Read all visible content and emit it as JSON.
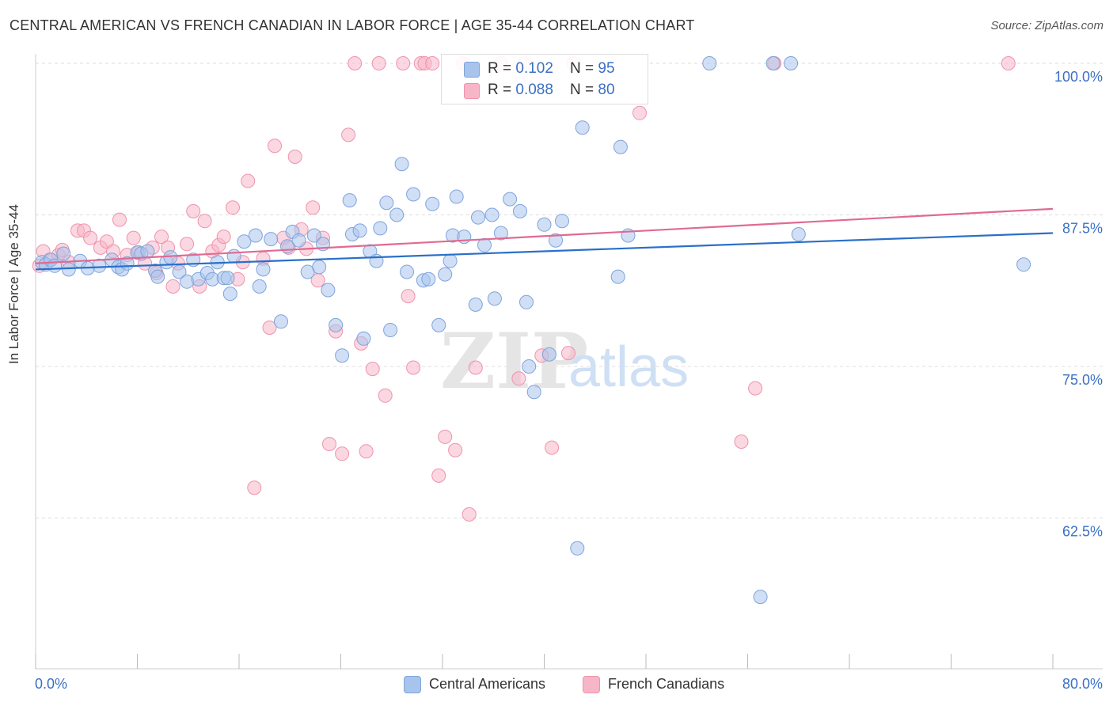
{
  "title": "CENTRAL AMERICAN VS FRENCH CANADIAN IN LABOR FORCE | AGE 35-44 CORRELATION CHART",
  "source": "Source: ZipAtlas.com",
  "legend_top": {
    "rows": [
      {
        "r_label": "R = ",
        "r_value": "0.102",
        "n_label": "N = ",
        "n_value": "95"
      },
      {
        "r_label": "R = ",
        "r_value": "0.088",
        "n_label": "N = ",
        "n_value": "80"
      }
    ]
  },
  "legend_bottom": [
    "Central Americans",
    "French Canadians"
  ],
  "colors": {
    "blue_fill": "#a9c4ec",
    "blue_stroke": "#7ea4dc",
    "blue_line": "#2a6fc9",
    "pink_fill": "#f7b6c8",
    "pink_stroke": "#ef93ad",
    "pink_line": "#e06a93",
    "tick_label": "#3a70c4",
    "grid": "#dddddd"
  },
  "chart_data": {
    "type": "scatter",
    "title": "CENTRAL AMERICAN VS FRENCH CANADIAN IN LABOR FORCE | AGE 35-44 CORRELATION CHART",
    "xlabel": "",
    "ylabel": "In Labor Force | Age 35-44",
    "xlim": [
      0,
      80
    ],
    "ylim": [
      50,
      101.2
    ],
    "x_tick_labels": [
      "0.0%",
      "80.0%"
    ],
    "y_ticks": [
      62.5,
      75.0,
      87.5,
      100.0
    ],
    "y_tick_labels": [
      "62.5%",
      "75.0%",
      "87.5%",
      "100.0%"
    ],
    "grid": true,
    "legend_position": "bottom",
    "series": [
      {
        "name": "Central Americans",
        "r": 0.102,
        "n": 95,
        "trend": {
          "x": [
            0,
            80
          ],
          "y": [
            83.0,
            86.0
          ]
        },
        "points": [
          [
            0.5,
            83.6
          ],
          [
            0.8,
            83.4
          ],
          [
            1.2,
            83.8
          ],
          [
            1.5,
            83.3
          ],
          [
            2.2,
            84.3
          ],
          [
            2.6,
            83.0
          ],
          [
            3.5,
            83.7
          ],
          [
            4.1,
            83.1
          ],
          [
            5.0,
            83.3
          ],
          [
            6.0,
            83.8
          ],
          [
            6.5,
            83.2
          ],
          [
            6.8,
            83.0
          ],
          [
            7.2,
            83.5
          ],
          [
            8.0,
            84.4
          ],
          [
            8.3,
            84.3
          ],
          [
            8.8,
            84.5
          ],
          [
            9.4,
            82.9
          ],
          [
            9.6,
            82.4
          ],
          [
            10.3,
            83.6
          ],
          [
            10.6,
            84.0
          ],
          [
            11.3,
            82.8
          ],
          [
            11.9,
            82.0
          ],
          [
            12.4,
            83.8
          ],
          [
            12.8,
            82.2
          ],
          [
            13.5,
            82.7
          ],
          [
            13.9,
            82.2
          ],
          [
            14.3,
            83.6
          ],
          [
            14.8,
            82.3
          ],
          [
            15.1,
            82.3
          ],
          [
            15.3,
            81.0
          ],
          [
            15.6,
            84.1
          ],
          [
            16.4,
            85.3
          ],
          [
            17.3,
            85.8
          ],
          [
            17.6,
            81.6
          ],
          [
            17.9,
            83.0
          ],
          [
            18.5,
            85.5
          ],
          [
            19.3,
            78.7
          ],
          [
            19.8,
            84.9
          ],
          [
            20.2,
            86.1
          ],
          [
            20.7,
            85.4
          ],
          [
            21.4,
            82.8
          ],
          [
            21.9,
            85.8
          ],
          [
            22.3,
            83.2
          ],
          [
            22.6,
            85.1
          ],
          [
            23.0,
            81.3
          ],
          [
            23.6,
            78.4
          ],
          [
            24.1,
            75.9
          ],
          [
            24.7,
            88.7
          ],
          [
            24.9,
            85.9
          ],
          [
            25.5,
            86.2
          ],
          [
            25.8,
            77.3
          ],
          [
            26.3,
            84.5
          ],
          [
            26.8,
            83.7
          ],
          [
            27.1,
            86.4
          ],
          [
            27.6,
            88.5
          ],
          [
            27.9,
            78.0
          ],
          [
            28.4,
            87.5
          ],
          [
            28.8,
            91.7
          ],
          [
            29.2,
            82.8
          ],
          [
            29.7,
            89.2
          ],
          [
            30.5,
            82.1
          ],
          [
            30.9,
            82.2
          ],
          [
            31.2,
            88.4
          ],
          [
            31.7,
            78.4
          ],
          [
            32.2,
            82.6
          ],
          [
            32.6,
            83.7
          ],
          [
            32.8,
            85.8
          ],
          [
            33.1,
            89.0
          ],
          [
            33.7,
            85.7
          ],
          [
            34.6,
            80.1
          ],
          [
            34.8,
            87.3
          ],
          [
            35.3,
            85.0
          ],
          [
            35.9,
            87.5
          ],
          [
            36.1,
            80.6
          ],
          [
            36.6,
            86.0
          ],
          [
            37.3,
            88.8
          ],
          [
            38.1,
            87.8
          ],
          [
            38.6,
            80.3
          ],
          [
            38.8,
            75.0
          ],
          [
            39.2,
            72.9
          ],
          [
            40.0,
            86.7
          ],
          [
            40.4,
            76.0
          ],
          [
            40.9,
            85.4
          ],
          [
            41.4,
            87.0
          ],
          [
            42.6,
            60.0
          ],
          [
            43.0,
            94.7
          ],
          [
            45.8,
            82.4
          ],
          [
            46.0,
            93.1
          ],
          [
            46.6,
            85.8
          ],
          [
            53.0,
            100.0
          ],
          [
            57.0,
            56.0
          ],
          [
            58.0,
            100.0
          ],
          [
            59.4,
            100.0
          ],
          [
            60.0,
            85.9
          ],
          [
            77.7,
            83.4
          ]
        ]
      },
      {
        "name": "French Canadians",
        "r": 0.088,
        "n": 80,
        "trend": {
          "x": [
            0,
            80
          ],
          "y": [
            83.5,
            88.0
          ]
        },
        "points": [
          [
            0.3,
            83.3
          ],
          [
            0.6,
            84.5
          ],
          [
            1.1,
            83.8
          ],
          [
            1.8,
            84.2
          ],
          [
            2.1,
            84.6
          ],
          [
            2.6,
            83.6
          ],
          [
            3.3,
            86.2
          ],
          [
            3.8,
            86.2
          ],
          [
            4.3,
            85.6
          ],
          [
            5.1,
            84.8
          ],
          [
            5.6,
            85.3
          ],
          [
            6.1,
            84.5
          ],
          [
            6.6,
            87.1
          ],
          [
            7.2,
            84.2
          ],
          [
            7.7,
            85.6
          ],
          [
            8.1,
            84.4
          ],
          [
            8.6,
            83.5
          ],
          [
            9.2,
            84.8
          ],
          [
            9.5,
            82.7
          ],
          [
            9.9,
            85.7
          ],
          [
            10.4,
            84.8
          ],
          [
            10.8,
            81.6
          ],
          [
            11.2,
            83.5
          ],
          [
            11.9,
            85.1
          ],
          [
            12.4,
            87.8
          ],
          [
            12.9,
            81.6
          ],
          [
            13.3,
            87.0
          ],
          [
            13.9,
            84.5
          ],
          [
            14.4,
            85.0
          ],
          [
            14.8,
            85.7
          ],
          [
            15.5,
            88.1
          ],
          [
            15.9,
            82.2
          ],
          [
            16.3,
            83.6
          ],
          [
            16.7,
            90.3
          ],
          [
            17.2,
            65.0
          ],
          [
            17.9,
            83.9
          ],
          [
            18.4,
            78.2
          ],
          [
            18.8,
            93.2
          ],
          [
            19.5,
            85.6
          ],
          [
            19.9,
            84.8
          ],
          [
            20.4,
            92.3
          ],
          [
            20.9,
            86.3
          ],
          [
            21.3,
            84.7
          ],
          [
            21.8,
            88.1
          ],
          [
            22.2,
            82.1
          ],
          [
            22.6,
            85.6
          ],
          [
            23.1,
            68.6
          ],
          [
            23.6,
            77.9
          ],
          [
            24.1,
            67.8
          ],
          [
            24.6,
            94.1
          ],
          [
            25.1,
            100.0
          ],
          [
            25.6,
            76.9
          ],
          [
            26.0,
            68.0
          ],
          [
            26.5,
            74.8
          ],
          [
            27.0,
            100.0
          ],
          [
            27.5,
            72.6
          ],
          [
            28.9,
            100.0
          ],
          [
            29.3,
            80.8
          ],
          [
            29.7,
            74.9
          ],
          [
            30.3,
            100.0
          ],
          [
            30.6,
            100.0
          ],
          [
            31.2,
            100.0
          ],
          [
            31.7,
            66.0
          ],
          [
            32.2,
            69.2
          ],
          [
            33.0,
            68.1
          ],
          [
            33.6,
            100.0
          ],
          [
            34.1,
            62.8
          ],
          [
            34.6,
            74.9
          ],
          [
            36.6,
            100.0
          ],
          [
            38.0,
            74.0
          ],
          [
            38.5,
            100.0
          ],
          [
            39.8,
            75.9
          ],
          [
            40.6,
            68.3
          ],
          [
            41.9,
            76.1
          ],
          [
            42.3,
            100.0
          ],
          [
            47.5,
            95.9
          ],
          [
            55.5,
            68.8
          ],
          [
            56.6,
            73.2
          ],
          [
            58.1,
            100.0
          ],
          [
            76.5,
            100.0
          ]
        ]
      }
    ]
  }
}
